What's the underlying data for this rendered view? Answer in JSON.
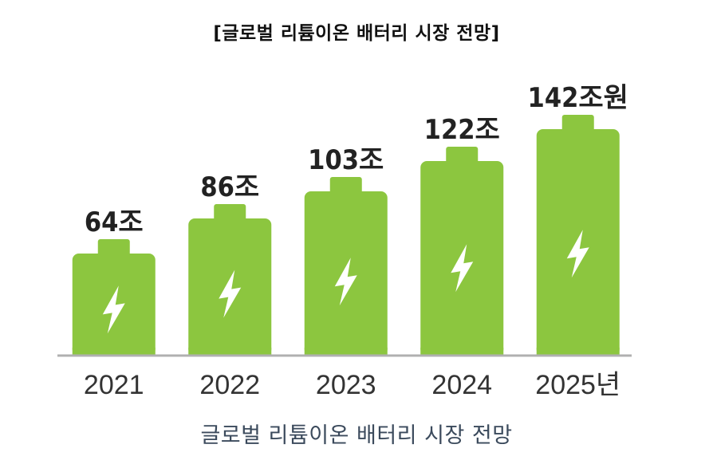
{
  "chart_title": "[글로벌 리튬이온 배터리 시장 전망]",
  "caption": "글로벌 리튬이온 배터리 시장 전망",
  "colors": {
    "battery": "#8cc63f",
    "bolt": "#ffffff",
    "baseline": "#b0b0b0",
    "value_label": "#222222",
    "year_label": "#333333"
  },
  "chart_data": {
    "type": "bar",
    "style": "battery-icon bars",
    "title": "[글로벌 리튬이온 배터리 시장 전망]",
    "xlabel": "",
    "ylabel": "",
    "unit": "조원",
    "categories": [
      "2021",
      "2022",
      "2023",
      "2024",
      "2025년"
    ],
    "values": [
      64,
      86,
      103,
      122,
      142
    ],
    "value_labels": [
      "64조",
      "86조",
      "103조",
      "122조",
      "142조원"
    ],
    "ylim": [
      0,
      160
    ],
    "grid": false,
    "legend": "none"
  }
}
